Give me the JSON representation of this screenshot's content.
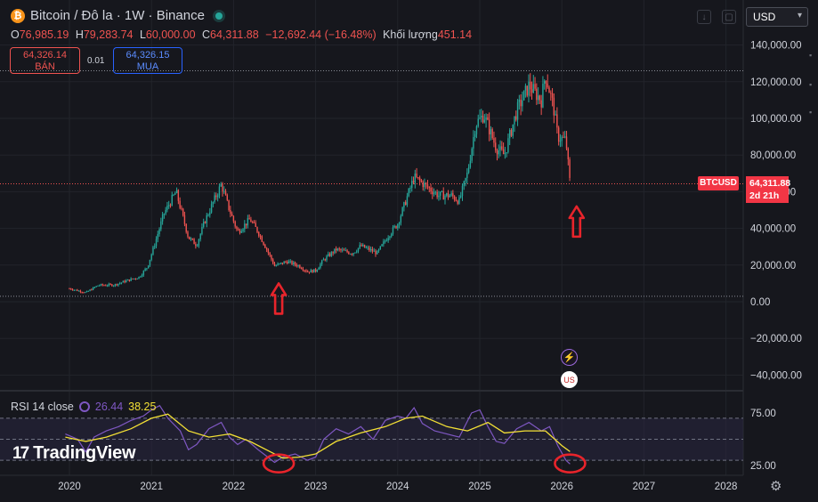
{
  "header": {
    "coin_symbol": "₿",
    "title": "Bitcoin / Đô la · 1W · Binance",
    "status_color": "#26a69a"
  },
  "ohlc": {
    "o_label": "O",
    "o": "76,985.19",
    "h_label": "H",
    "h": "79,283.74",
    "l_label": "L",
    "l": "60,000.00",
    "c_label": "C",
    "c": "64,311.88",
    "change": "−12,692.44 (−16.48%)",
    "volume_label": "Khối lượng",
    "volume": "451.14"
  },
  "trade": {
    "sell_price": "64,326.14",
    "sell_label": "BÁN",
    "spread": "0.01",
    "buy_price": "64,326.15",
    "buy_label": "MUA"
  },
  "currency": {
    "value": "USD",
    "caret": "▾"
  },
  "price_tag": {
    "symbol": "BTCUSD",
    "price": "64,311.88",
    "countdown": "2d 21h",
    "color": "#f23645"
  },
  "events": {
    "flash_icon": "⚡",
    "flag_icon": "US"
  },
  "rsi_label": {
    "name": "RSI 14 close",
    "rsi_value": "26.44",
    "ma_value": "38.25"
  },
  "logo": {
    "mark": "17",
    "text": "TradingView"
  },
  "colors": {
    "up": "#26a69a",
    "down": "#ef5350",
    "rsi": "#7e57c2",
    "rsi_ma": "#f3e035",
    "annotation": "#e8242b",
    "band": "#2a2640"
  },
  "chart_data": [
    {
      "type": "candlestick",
      "title": "Bitcoin / Đô la · 1W · Binance",
      "x_ticks": [
        "2020",
        "2021",
        "2022",
        "2023",
        "2024",
        "2025",
        "2026",
        "2027",
        "2028"
      ],
      "y_ticks": [
        "140,000.00",
        "120,000.00",
        "100,000.00",
        "80,000.00",
        "60,000.00",
        "40,000.00",
        "20,000.00",
        "0.00",
        "−20,000.00",
        "−40,000.00"
      ],
      "ylim": [
        -50000,
        145000
      ],
      "xlim": [
        2019.5,
        2028.2
      ],
      "reference_levels": [
        126000,
        3000
      ],
      "last_price": 64311.88,
      "key_points": [
        [
          2020.0,
          7200
        ],
        [
          2020.2,
          5000
        ],
        [
          2020.35,
          9000
        ],
        [
          2020.55,
          9200
        ],
        [
          2020.7,
          11500
        ],
        [
          2020.85,
          13500
        ],
        [
          2020.95,
          19000
        ],
        [
          2021.05,
          33000
        ],
        [
          2021.15,
          48000
        ],
        [
          2021.3,
          60000
        ],
        [
          2021.45,
          35000
        ],
        [
          2021.55,
          31000
        ],
        [
          2021.65,
          44000
        ],
        [
          2021.85,
          64000
        ],
        [
          2021.95,
          50000
        ],
        [
          2022.05,
          38000
        ],
        [
          2022.2,
          45000
        ],
        [
          2022.3,
          38000
        ],
        [
          2022.4,
          29000
        ],
        [
          2022.5,
          19500
        ],
        [
          2022.65,
          22000
        ],
        [
          2022.8,
          19500
        ],
        [
          2022.9,
          16500
        ],
        [
          2023.0,
          17000
        ],
        [
          2023.1,
          23000
        ],
        [
          2023.25,
          28500
        ],
        [
          2023.45,
          26500
        ],
        [
          2023.55,
          30500
        ],
        [
          2023.75,
          26500
        ],
        [
          2023.9,
          37000
        ],
        [
          2024.0,
          42500
        ],
        [
          2024.2,
          68000
        ],
        [
          2024.35,
          63000
        ],
        [
          2024.5,
          58000
        ],
        [
          2024.65,
          58000
        ],
        [
          2024.75,
          55000
        ],
        [
          2024.85,
          70000
        ],
        [
          2024.95,
          97000
        ],
        [
          2025.05,
          102000
        ],
        [
          2025.2,
          84000
        ],
        [
          2025.3,
          80000
        ],
        [
          2025.45,
          104000
        ],
        [
          2025.6,
          118000
        ],
        [
          2025.75,
          110000
        ],
        [
          2025.8,
          124000
        ],
        [
          2025.9,
          106000
        ],
        [
          2025.95,
          90000
        ],
        [
          2026.05,
          88000
        ],
        [
          2026.1,
          64311.88
        ]
      ],
      "annotations": [
        {
          "type": "arrow-up",
          "x": 2022.55,
          "y": 10000
        },
        {
          "type": "arrow-up",
          "x": 2026.18,
          "y": 52000
        }
      ]
    },
    {
      "type": "line",
      "title": "RSI 14 close",
      "y_ticks": [
        "75.00",
        "25.00"
      ],
      "ylim": [
        20,
        85
      ],
      "levels": [
        70,
        50,
        30
      ],
      "series": [
        {
          "name": "RSI 14 close",
          "x": [
            2019.95,
            2020.1,
            2020.2,
            2020.3,
            2020.45,
            2020.6,
            2020.75,
            2020.9,
            2021.0,
            2021.1,
            2021.2,
            2021.35,
            2021.45,
            2021.55,
            2021.7,
            2021.85,
            2021.95,
            2022.05,
            2022.15,
            2022.3,
            2022.4,
            2022.5,
            2022.6,
            2022.75,
            2022.9,
            2023.0,
            2023.1,
            2023.25,
            2023.4,
            2023.55,
            2023.7,
            2023.85,
            2024.0,
            2024.1,
            2024.2,
            2024.3,
            2024.45,
            2024.6,
            2024.75,
            2024.9,
            2025.0,
            2025.1,
            2025.2,
            2025.3,
            2025.45,
            2025.6,
            2025.75,
            2025.85,
            2025.95,
            2026.05,
            2026.1
          ],
          "values": [
            55,
            50,
            38,
            52,
            58,
            62,
            68,
            72,
            78,
            82,
            70,
            58,
            40,
            45,
            60,
            66,
            52,
            45,
            50,
            40,
            34,
            28,
            33,
            36,
            30,
            33,
            50,
            60,
            55,
            62,
            50,
            68,
            72,
            70,
            80,
            65,
            58,
            55,
            52,
            75,
            78,
            62,
            48,
            46,
            60,
            66,
            58,
            62,
            44,
            30,
            26.44
          ]
        },
        {
          "name": "RSI MA",
          "x": [
            2019.95,
            2020.2,
            2020.45,
            2020.75,
            2021.0,
            2021.2,
            2021.45,
            2021.7,
            2021.95,
            2022.2,
            2022.45,
            2022.6,
            2022.8,
            2023.0,
            2023.25,
            2023.55,
            2023.85,
            2024.1,
            2024.3,
            2024.6,
            2024.85,
            2025.1,
            2025.3,
            2025.55,
            2025.8,
            2026.0,
            2026.1
          ],
          "values": [
            52,
            48,
            52,
            60,
            70,
            74,
            58,
            52,
            55,
            48,
            38,
            32,
            33,
            36,
            48,
            56,
            62,
            70,
            72,
            62,
            58,
            66,
            56,
            58,
            58,
            44,
            38.25
          ]
        }
      ],
      "annotations": [
        {
          "type": "ellipse",
          "x": 2022.55,
          "y": 27
        },
        {
          "type": "ellipse",
          "x": 2026.1,
          "y": 27
        }
      ]
    }
  ]
}
